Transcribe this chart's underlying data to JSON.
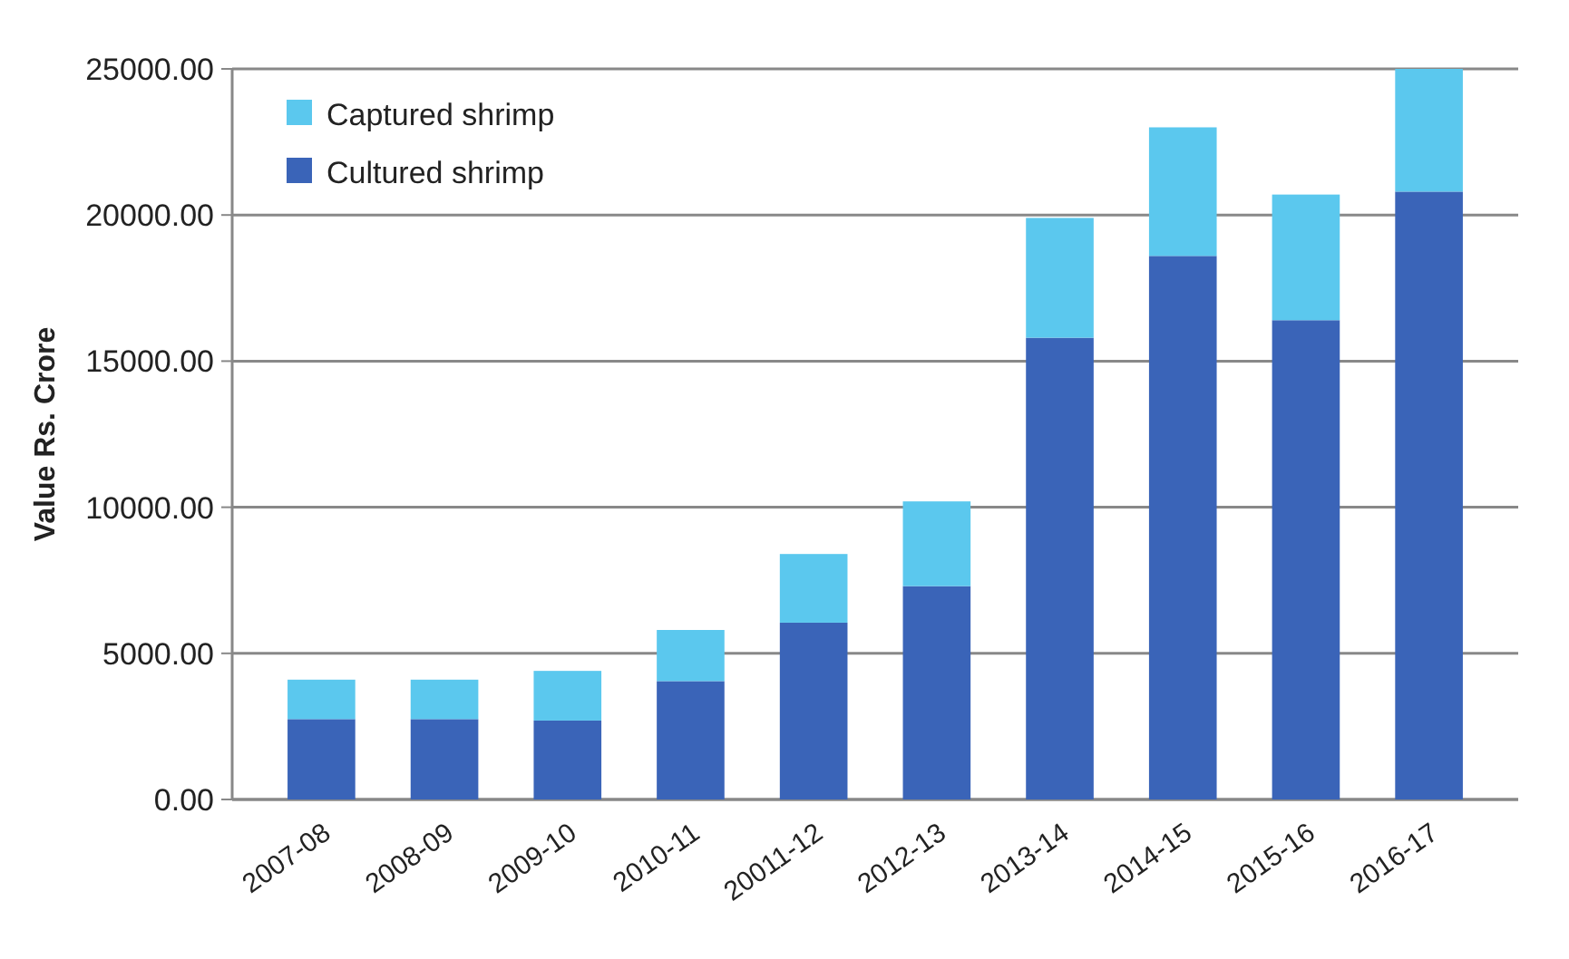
{
  "chart_data": {
    "type": "bar",
    "stacked": true,
    "ylabel": "Value Rs. Crore",
    "categories": [
      "2007-08",
      "2008-09",
      "2009-10",
      "2010-11",
      "20011-12",
      "2012-13",
      "2013-14",
      "2014-15",
      "2015-16",
      "2016-17"
    ],
    "series": [
      {
        "name": "Cultured shrimp",
        "color": "#3a64b8",
        "values": [
          2750,
          2750,
          2700,
          4050,
          6050,
          7300,
          15800,
          18600,
          16400,
          20800
        ]
      },
      {
        "name": "Captured shrimp",
        "color": "#5bc8ee",
        "values": [
          1350,
          1350,
          1700,
          1750,
          2350,
          2900,
          4100,
          4400,
          4300,
          4200
        ]
      }
    ],
    "ylim": [
      0,
      25000
    ],
    "yticks": [
      {
        "value": 0,
        "label": "0.00"
      },
      {
        "value": 5000,
        "label": "5000.00"
      },
      {
        "value": 10000,
        "label": "10000.00"
      },
      {
        "value": 15000,
        "label": "15000.00"
      },
      {
        "value": 20000,
        "label": "20000.00"
      },
      {
        "value": 25000,
        "label": "25000.00"
      }
    ],
    "grid": "y",
    "legend": "top left"
  }
}
